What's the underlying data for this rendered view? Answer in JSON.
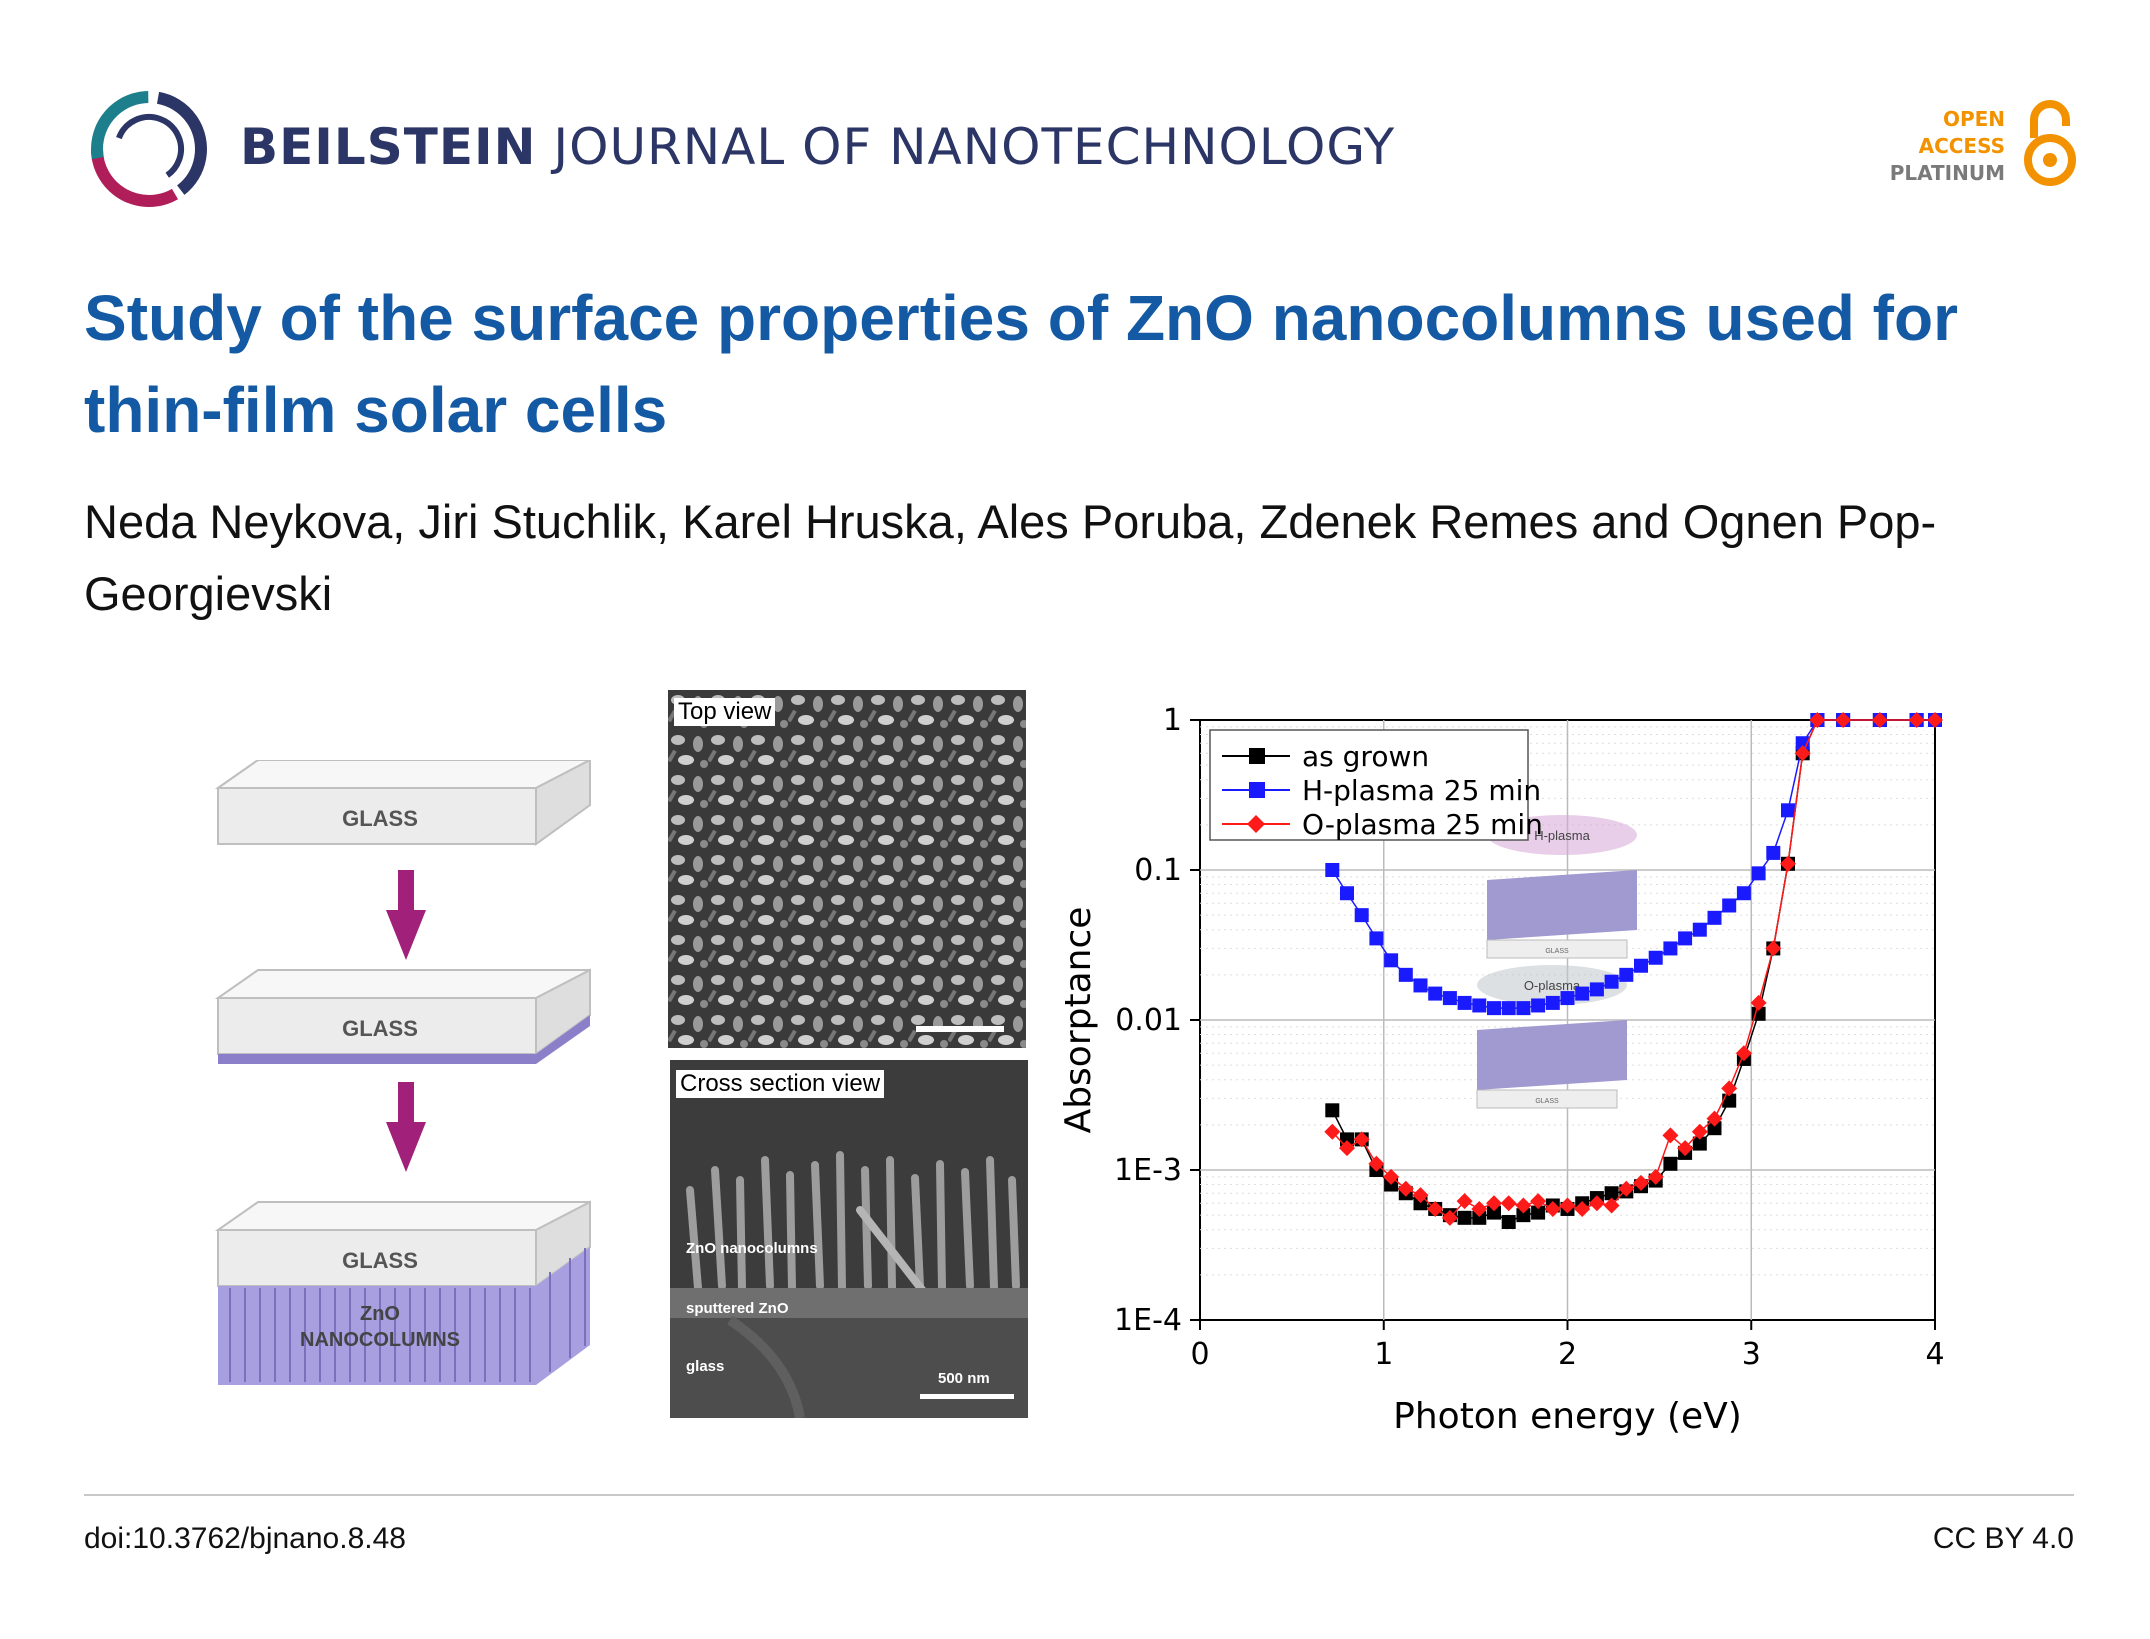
{
  "header": {
    "journal_bold": "BEILSTEIN",
    "journal_rest": " JOURNAL OF NANOTECHNOLOGY",
    "oa_line1": "OPEN",
    "oa_line2": "ACCESS",
    "oa_line3": "PLATINUM",
    "logo_icon": "beilstein-ring-logo",
    "oa_icon": "open-access-lock-icon"
  },
  "article": {
    "title": "Study of the surface properties of ZnO nanocolumns used for thin-film solar cells",
    "authors": "Neda Neykova, Jiri Stuchlik, Karel Hruska, Ales Poruba, Zdenek Remes and Ognen Pop-Georgievski"
  },
  "schematic": {
    "glass1": "GLASS",
    "glass2": "GLASS",
    "glass3": "GLASS",
    "zno1": "ZnO",
    "zno2": "NANOCOLUMNS"
  },
  "sem": {
    "top_label": "Top view",
    "cross_label": "Cross section view",
    "zno_label": "ZnO nanocolumns",
    "sputtered_label": "sputtered ZnO",
    "glass_label": "glass",
    "scale_label": "500 nm"
  },
  "chart_data": {
    "type": "scatter",
    "title": "",
    "xlabel": "Photon energy (eV)",
    "ylabel": "Absorptance",
    "xlim": [
      0,
      4
    ],
    "ylim": [
      0.0001,
      1
    ],
    "yscale": "log",
    "xticks": [
      "0",
      "1",
      "2",
      "3",
      "4"
    ],
    "yticks": [
      "1E-4",
      "1E-3",
      "0.01",
      "0.1",
      "1"
    ],
    "grid": true,
    "legend_position": "top-left",
    "inset_labels": {
      "h_plasma": "H-plasma",
      "o_plasma": "O-plasma",
      "glass": "GLASS"
    },
    "series": [
      {
        "name": "as grown",
        "color": "#000000",
        "marker": "square",
        "x": [
          0.72,
          0.8,
          0.88,
          0.96,
          1.04,
          1.12,
          1.2,
          1.28,
          1.36,
          1.44,
          1.52,
          1.6,
          1.68,
          1.76,
          1.84,
          1.92,
          2.0,
          2.08,
          2.16,
          2.24,
          2.32,
          2.4,
          2.48,
          2.56,
          2.64,
          2.72,
          2.8,
          2.88,
          2.96,
          3.04,
          3.12,
          3.2,
          3.28,
          3.36,
          3.5,
          3.7,
          3.9,
          4.0
        ],
        "y": [
          0.0025,
          0.0016,
          0.0016,
          0.001,
          0.0008,
          0.0007,
          0.0006,
          0.00055,
          0.0005,
          0.00048,
          0.00048,
          0.00052,
          0.00045,
          0.0005,
          0.00052,
          0.00058,
          0.00055,
          0.0006,
          0.00065,
          0.0007,
          0.00072,
          0.00078,
          0.00085,
          0.0011,
          0.0013,
          0.0015,
          0.0019,
          0.0029,
          0.0055,
          0.011,
          0.03,
          0.11,
          0.6,
          1.0,
          1.0,
          1.0,
          1.0,
          1.0
        ]
      },
      {
        "name": "H-plasma 25 min",
        "color": "#1a1aff",
        "marker": "square",
        "x": [
          0.72,
          0.8,
          0.88,
          0.96,
          1.04,
          1.12,
          1.2,
          1.28,
          1.36,
          1.44,
          1.52,
          1.6,
          1.68,
          1.76,
          1.84,
          1.92,
          2.0,
          2.08,
          2.16,
          2.24,
          2.32,
          2.4,
          2.48,
          2.56,
          2.64,
          2.72,
          2.8,
          2.88,
          2.96,
          3.04,
          3.12,
          3.2,
          3.28,
          3.36,
          3.5,
          3.7,
          3.9,
          4.0
        ],
        "y": [
          0.1,
          0.07,
          0.05,
          0.035,
          0.025,
          0.02,
          0.017,
          0.015,
          0.014,
          0.013,
          0.0125,
          0.012,
          0.012,
          0.012,
          0.0125,
          0.013,
          0.014,
          0.015,
          0.016,
          0.018,
          0.02,
          0.023,
          0.026,
          0.03,
          0.035,
          0.04,
          0.048,
          0.058,
          0.07,
          0.095,
          0.13,
          0.25,
          0.7,
          1.0,
          1.0,
          1.0,
          1.0,
          1.0
        ]
      },
      {
        "name": "O-plasma 25 min",
        "color": "#ff1a1a",
        "marker": "diamond",
        "x": [
          0.72,
          0.8,
          0.88,
          0.96,
          1.04,
          1.12,
          1.2,
          1.28,
          1.36,
          1.44,
          1.52,
          1.6,
          1.68,
          1.76,
          1.84,
          1.92,
          2.0,
          2.08,
          2.16,
          2.24,
          2.32,
          2.4,
          2.48,
          2.56,
          2.64,
          2.72,
          2.8,
          2.88,
          2.96,
          3.04,
          3.12,
          3.2,
          3.28,
          3.36,
          3.5,
          3.7,
          3.9,
          4.0
        ],
        "y": [
          0.0018,
          0.0014,
          0.0016,
          0.0011,
          0.0009,
          0.00075,
          0.00068,
          0.00055,
          0.00048,
          0.00062,
          0.00055,
          0.0006,
          0.0006,
          0.00058,
          0.00062,
          0.00055,
          0.00058,
          0.00055,
          0.0006,
          0.00058,
          0.00075,
          0.00082,
          0.0009,
          0.0017,
          0.0014,
          0.0018,
          0.0022,
          0.0035,
          0.006,
          0.013,
          0.03,
          0.11,
          0.6,
          1.0,
          1.0,
          1.0,
          1.0,
          1.0
        ]
      }
    ]
  },
  "footer": {
    "doi": "doi:10.3762/bjnano.8.48",
    "license": "CC BY 4.0"
  }
}
